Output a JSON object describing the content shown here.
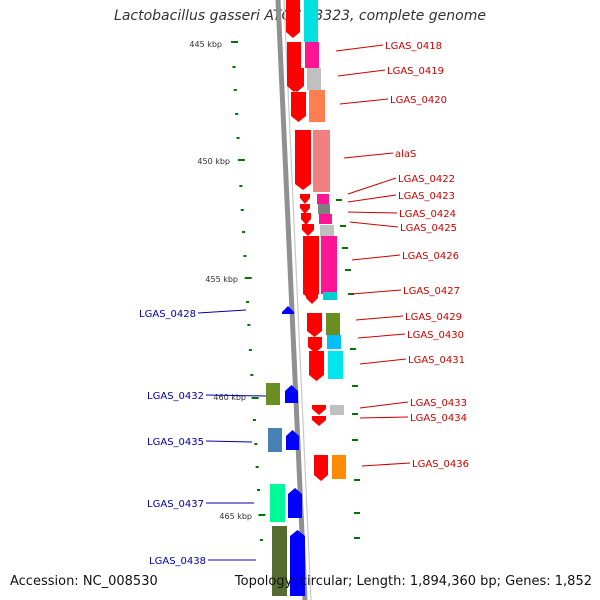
{
  "title": "Lactobacillus gasseri ATCC 33323, complete genome",
  "footer": {
    "accession": "Accession: NC_008530",
    "topology": "Topology: circular; Length: 1,894,360 bp; Genes: 1,852"
  },
  "colors": {
    "backbone": "#909090",
    "forward_strand": "#ff0000",
    "reverse_strand": "#0000ff",
    "forward_label": "#cc0000",
    "reverse_label": "#0000aa",
    "tick": "#007700"
  },
  "scale": {
    "unit": "kbp",
    "labels": [
      "445 kbp",
      "450 kbp",
      "455 kbp",
      "460 kbp",
      "465 kbp"
    ]
  },
  "genes_forward": [
    "LGAS_0418",
    "LGAS_0419",
    "LGAS_0420",
    "alaS",
    "LGAS_0422",
    "LGAS_0423",
    "LGAS_0424",
    "LGAS_0425",
    "LGAS_0426",
    "LGAS_0427",
    "LGAS_0429",
    "LGAS_0430",
    "LGAS_0431",
    "LGAS_0433",
    "LGAS_0434",
    "LGAS_0436"
  ],
  "genes_reverse": [
    "LGAS_0428",
    "LGAS_0432",
    "LGAS_0435",
    "LGAS_0437",
    "LGAS_0438"
  ]
}
